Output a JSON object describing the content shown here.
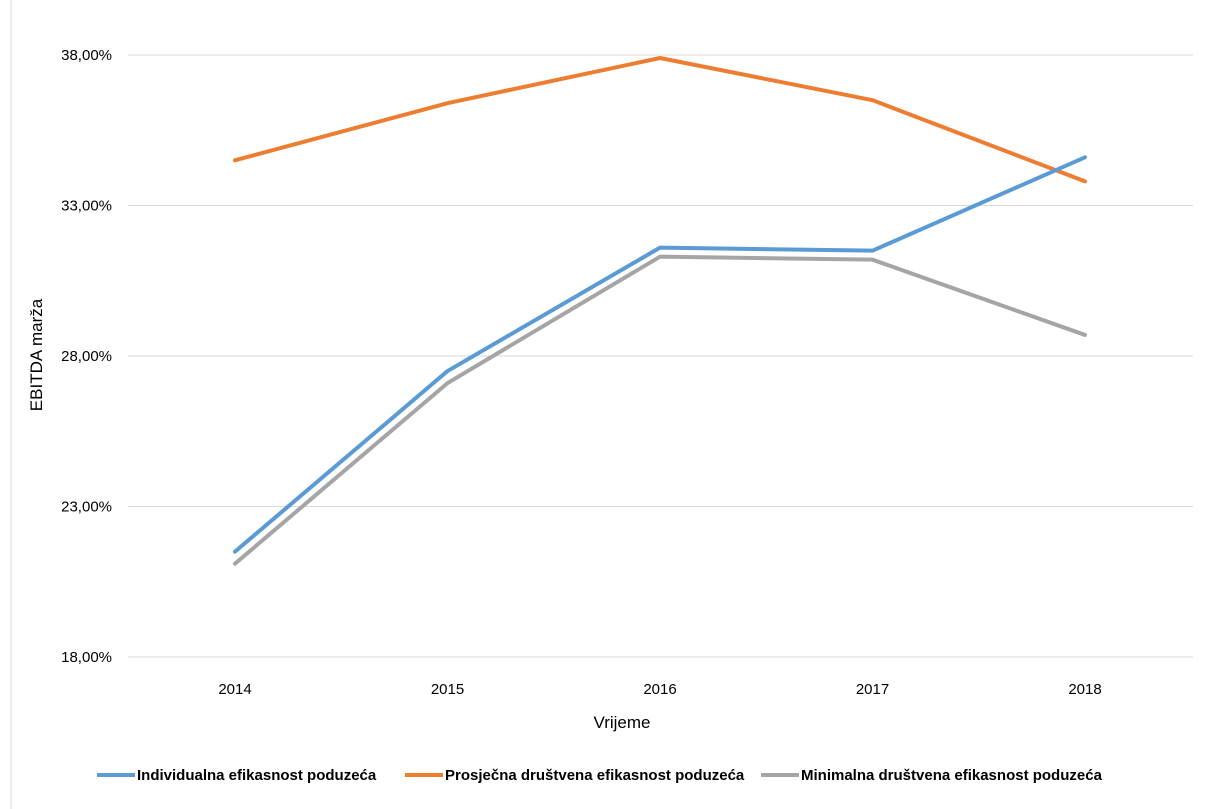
{
  "chart_data": {
    "type": "line",
    "title": "",
    "xlabel": "Vrijeme",
    "ylabel": "EBITDA marža",
    "categories": [
      "2014",
      "2015",
      "2016",
      "2017",
      "2018"
    ],
    "ylim": [
      18,
      38
    ],
    "yticks": [
      18,
      23,
      28,
      33,
      38
    ],
    "ytick_labels": [
      "18,00%",
      "23,00%",
      "28,00%",
      "33,00%",
      "38,00%"
    ],
    "grid": true,
    "legend_position": "bottom",
    "series": [
      {
        "name": "Individualna efikasnost poduzeća",
        "color": "#5B9BD5",
        "values": [
          21.5,
          27.5,
          31.6,
          31.5,
          34.6
        ]
      },
      {
        "name": "Prosječna društvena efikasnost poduzeća",
        "color": "#ED7D31",
        "values": [
          34.5,
          36.4,
          37.9,
          36.5,
          33.8
        ]
      },
      {
        "name": "Minimalna društvena efikasnost poduzeća",
        "color": "#A5A5A5",
        "values": [
          21.1,
          27.1,
          31.3,
          31.2,
          28.7
        ]
      }
    ]
  }
}
